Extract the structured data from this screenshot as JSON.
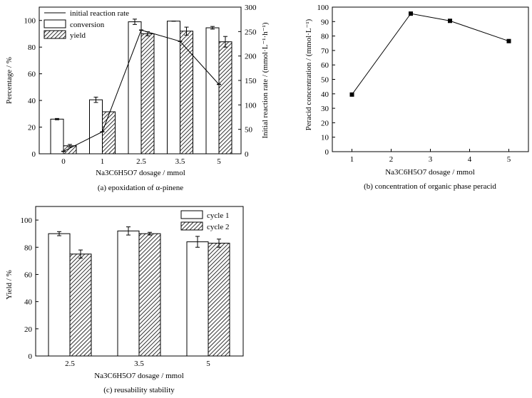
{
  "chart_data": [
    {
      "id": "a",
      "type": "bar",
      "caption": "(a) epoxidation of α-pinene",
      "xlabel": "Na3C6H5O7 dosage / mmol",
      "ylabel": "Percentage / %",
      "y2label": "Initial reaction rate / (mmol·L⁻¹·h⁻¹)",
      "categories": [
        "0",
        "1",
        "2.5",
        "3.5",
        "5"
      ],
      "ylim": [
        0,
        110
      ],
      "y2lim": [
        0,
        300
      ],
      "yticks": [
        "0",
        "20",
        "40",
        "60",
        "80",
        "100"
      ],
      "y2ticks": [
        "0",
        "50",
        "100",
        "150",
        "200",
        "250",
        "300"
      ],
      "legend_position": "top-left",
      "series": [
        {
          "name": "conversion",
          "kind": "bar",
          "fill": "white",
          "values": [
            26,
            40.5,
            99,
            99.5,
            94.5
          ],
          "errors": [
            0.5,
            2,
            2,
            0,
            1
          ]
        },
        {
          "name": "yield",
          "kind": "bar",
          "fill": "hatched",
          "values": [
            6,
            31.5,
            90,
            92,
            84
          ],
          "errors": [
            1,
            0,
            1.5,
            3,
            4
          ]
        },
        {
          "name": "initial reaction rate",
          "kind": "line",
          "axis": "right",
          "values": [
            5,
            45,
            253,
            230,
            142
          ]
        }
      ]
    },
    {
      "id": "b",
      "type": "line",
      "caption": "(b) concentration of organic phase peracid",
      "xlabel": "Na3C6H5O7 dosage / mmol",
      "ylabel": "Peracid concentration / (mmol·L⁻¹)",
      "xlim": [
        0.5,
        5.5
      ],
      "ylim": [
        0,
        100
      ],
      "xticks": [
        "1",
        "2",
        "3",
        "4",
        "5"
      ],
      "yticks": [
        "0",
        "10",
        "20",
        "30",
        "40",
        "50",
        "60",
        "70",
        "80",
        "90",
        "100"
      ],
      "x": [
        1,
        2.5,
        3.5,
        5
      ],
      "y": [
        39.5,
        95.5,
        90.5,
        76.5
      ],
      "marker": "square"
    },
    {
      "id": "c",
      "type": "bar",
      "caption": "(c) reusability stability",
      "xlabel": "Na3C6H5O7 dosage / mmol",
      "ylabel": "Yield / %",
      "categories": [
        "2.5",
        "3.5",
        "5"
      ],
      "ylim": [
        0,
        110
      ],
      "yticks": [
        "0",
        "20",
        "40",
        "60",
        "80",
        "100"
      ],
      "legend_position": "top-right",
      "series": [
        {
          "name": "cycle 1",
          "fill": "white",
          "values": [
            90,
            92,
            84
          ],
          "errors": [
            1.5,
            3,
            4
          ]
        },
        {
          "name": "cycle 2",
          "fill": "hatched",
          "values": [
            75,
            90,
            83
          ],
          "errors": [
            3,
            1,
            3
          ]
        }
      ]
    }
  ]
}
